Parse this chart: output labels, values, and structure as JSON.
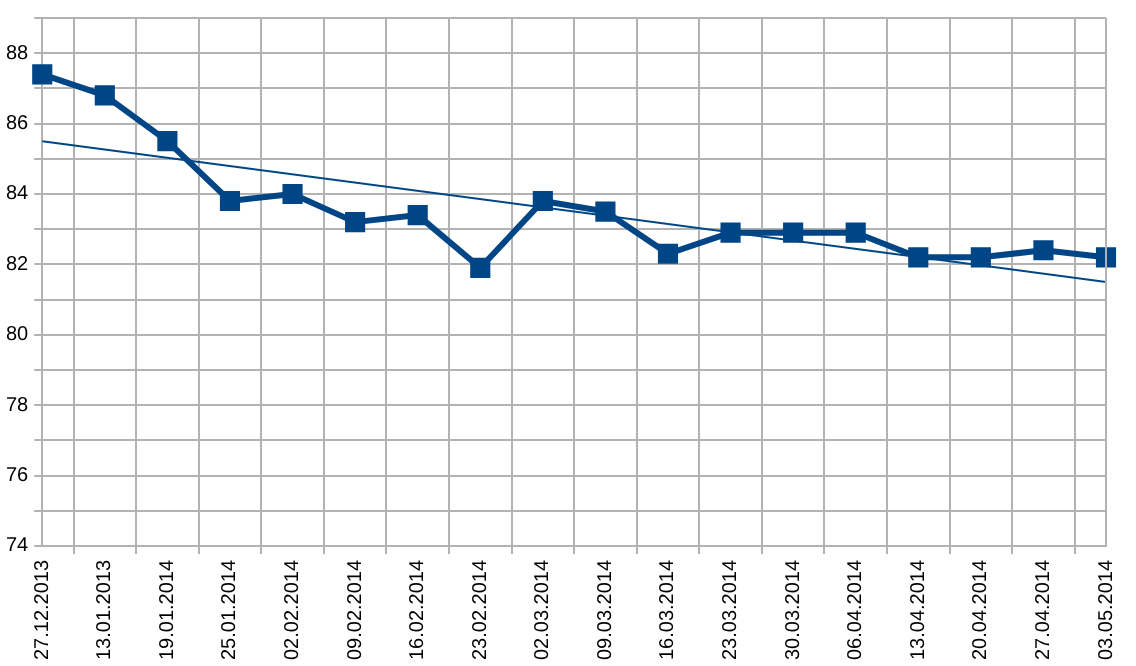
{
  "chart_data": {
    "type": "line",
    "categories": [
      "27.12.2013",
      "13.01.2013",
      "19.01.2014",
      "25.01.2014",
      "02.02.2014",
      "09.02.2014",
      "16.02.2014",
      "23.02.2014",
      "02.03.2014",
      "09.03.2014",
      "16.03.2014",
      "23.03.2014",
      "30.03.2014",
      "06.04.2014",
      "13.04.2014",
      "20.04.2014",
      "27.04.2014",
      "03.05.2014"
    ],
    "series": [
      {
        "color": "#004586",
        "marker": "square",
        "values": [
          87.4,
          86.8,
          85.5,
          83.8,
          84.0,
          83.2,
          83.4,
          81.9,
          83.8,
          83.5,
          82.3,
          82.9,
          82.9,
          82.9,
          82.2,
          82.2,
          82.4,
          82.2
        ]
      },
      {
        "type": "line",
        "color": "#004586",
        "marker": "none",
        "x": [
          "27.12.2013",
          "03.05.2014"
        ],
        "values": [
          85.5,
          81.5
        ]
      }
    ],
    "ylim": [
      74,
      89
    ],
    "yticks": [
      74,
      {
        "value": 75,
        "label": null
      },
      76,
      {
        "value": 77,
        "label": null
      },
      78,
      {
        "value": 79,
        "label": null
      },
      80,
      {
        "value": 81,
        "label": null
      },
      82,
      {
        "value": 83,
        "label": null
      },
      84,
      {
        "value": 85,
        "label": null
      },
      86,
      {
        "value": 87,
        "label": null
      },
      88,
      {
        "value": 89,
        "label": null
      }
    ],
    "grid": true,
    "legend": false
  }
}
